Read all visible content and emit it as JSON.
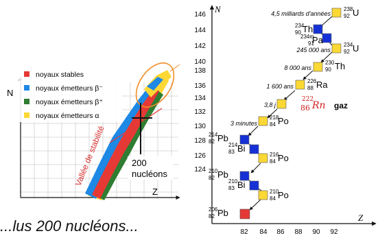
{
  "left_chart": {
    "y_label": "N",
    "x_label": "Z",
    "legend": [
      {
        "label": "noyaux stables",
        "color": "#e53935"
      },
      {
        "label": "noyaux émetteurs  β⁻",
        "color": "#1e88e5"
      },
      {
        "label": "noyaux émetteurs  β⁺",
        "color": "#2e7d32"
      },
      {
        "label": "noyaux émetteurs  α",
        "color": "#fdd835"
      }
    ],
    "valley_label": "Vallée de stabilité",
    "nucleon_label": "200",
    "nucleon_label2": "nucléons",
    "line_color": "#e53935",
    "ellipse_color": "#f28c28"
  },
  "right_chart": {
    "y_label": "N",
    "x_label": "Z",
    "y_ticks": [
      "146",
      "144",
      "142",
      "140",
      "138",
      "136",
      "134",
      "132",
      "130",
      "128",
      "126",
      "124"
    ],
    "x_ticks": [
      "82",
      "84",
      "86",
      "88",
      "90",
      "92"
    ],
    "colors": {
      "alpha": "#fcd835",
      "beta": "#1531d6",
      "stable": "#e53935"
    },
    "nuclides": [
      {
        "A": "238",
        "Z": "92",
        "sym": "U",
        "type": "alpha"
      },
      {
        "A": "234",
        "Z": "90",
        "sym": "Th",
        "type": "beta"
      },
      {
        "A": "234m",
        "Z": "91",
        "sym": "Pa",
        "type": "beta"
      },
      {
        "A": "234",
        "Z": "92",
        "sym": "U",
        "type": "alpha"
      },
      {
        "A": "230",
        "Z": "90",
        "sym": "Th",
        "type": "alpha"
      },
      {
        "A": "226",
        "Z": "88",
        "sym": "Ra",
        "type": "alpha"
      },
      {
        "A": "222",
        "Z": "86",
        "sym": "Rn",
        "type": "alpha"
      },
      {
        "A": "218",
        "Z": "84",
        "sym": "Po",
        "type": "alpha"
      },
      {
        "A": "214",
        "Z": "82",
        "sym": "Pb",
        "type": "beta"
      },
      {
        "A": "214",
        "Z": "83",
        "sym": "Bi",
        "type": "beta"
      },
      {
        "A": "216",
        "Z": "84",
        "sym": "Po",
        "type": "alpha"
      },
      {
        "A": "210",
        "Z": "82",
        "sym": "Pb",
        "type": "beta"
      },
      {
        "A": "210",
        "Z": "83",
        "sym": "Bi",
        "type": "beta"
      },
      {
        "A": "210",
        "Z": "84",
        "sym": "Po",
        "type": "alpha"
      },
      {
        "A": "206",
        "Z": "82",
        "sym": "Pb",
        "type": "stable"
      }
    ],
    "half_lives": [
      "4,5 milliards d'années",
      "245 000 ans",
      "8 000 ans",
      "1 600 ans",
      "3,8 j",
      "3 minutes"
    ],
    "radon": {
      "A": "222",
      "Z": "86",
      "sym": "Rn",
      "suffix": "gaz"
    }
  },
  "bottom_text": "...lus 200 nucléons..."
}
